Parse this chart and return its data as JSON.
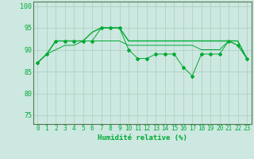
{
  "xlabel": "Humidité relative (%)",
  "xlim": [
    -0.5,
    23.5
  ],
  "ylim": [
    73,
    101
  ],
  "yticks": [
    75,
    80,
    85,
    90,
    95,
    100
  ],
  "xticks": [
    0,
    1,
    2,
    3,
    4,
    5,
    6,
    7,
    8,
    9,
    10,
    11,
    12,
    13,
    14,
    15,
    16,
    17,
    18,
    19,
    20,
    21,
    22,
    23
  ],
  "bg_color": "#cce8e0",
  "grid_color": "#aaccc0",
  "line_color": "#00aa33",
  "series1_x": [
    0,
    1,
    2,
    3,
    4,
    5,
    6,
    7,
    8,
    9,
    10,
    11,
    12,
    13,
    14,
    15,
    16,
    17,
    18,
    19,
    20,
    21,
    22,
    23
  ],
  "series1_y": [
    87,
    89,
    92,
    92,
    92,
    92,
    92,
    95,
    95,
    95,
    90,
    88,
    88,
    89,
    89,
    89,
    86,
    84,
    89,
    89,
    89,
    92,
    91,
    88
  ],
  "series2_y": [
    87,
    89,
    92,
    92,
    92,
    92,
    94,
    95,
    95,
    95,
    92,
    92,
    92,
    92,
    92,
    92,
    92,
    92,
    92,
    92,
    92,
    92,
    92,
    88
  ],
  "series3_y": [
    87,
    89,
    90,
    91,
    91,
    92,
    92,
    92,
    92,
    92,
    91,
    91,
    91,
    91,
    91,
    91,
    91,
    91,
    90,
    90,
    90,
    92,
    91,
    88
  ],
  "xlabel_fontsize": 6.5,
  "tick_fontsize": 5.5
}
